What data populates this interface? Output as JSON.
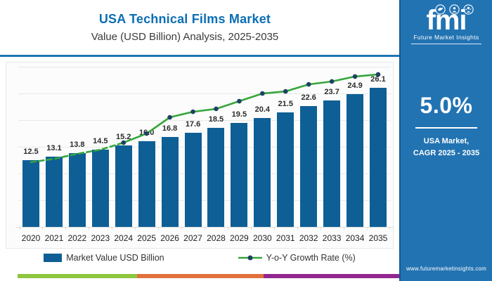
{
  "header": {
    "title": "USA Technical Films Market",
    "subtitle": "Value (USD Billion) Analysis, 2025-2035"
  },
  "logo": {
    "text": "fmi",
    "tagline": "Future Market Insights",
    "icons": [
      "dove",
      "person-globe",
      "person-waving"
    ]
  },
  "side_panel": {
    "bg_color": "#2273b2",
    "cagr_value": "5.0%",
    "cagr_label_line1": "USA Market,",
    "cagr_label_line2": "CAGR 2025 - 2035",
    "website": "www.futuremarketinsights.com"
  },
  "chart_data": {
    "type": "bar+line",
    "title": "USA Technical Films Market",
    "subtitle": "Value (USD Billion) Analysis, 2025-2035",
    "categories": [
      "2020",
      "2021",
      "2022",
      "2023",
      "2024",
      "2025",
      "2026",
      "2027",
      "2028",
      "2029",
      "2030",
      "2031",
      "2032",
      "2033",
      "2034",
      "2035"
    ],
    "series": [
      {
        "name": "Market Value USD Billion",
        "type": "bar",
        "color": "#0e5f96",
        "values": [
          12.5,
          13.1,
          13.8,
          14.5,
          15.2,
          16.0,
          16.8,
          17.6,
          18.5,
          19.5,
          20.4,
          21.5,
          22.6,
          23.7,
          24.9,
          26.1
        ]
      },
      {
        "name": "Y-o-Y Growth Rate (%)",
        "type": "line",
        "color": "#35a63b",
        "marker_color": "#1e4164",
        "axis": "secondary-hidden",
        "style_note": "dashed 2020-2024, solid with markers 2024-2035",
        "y_norm": [
          0.404,
          0.425,
          0.456,
          0.482,
          0.526,
          0.583,
          0.684,
          0.719,
          0.737,
          0.785,
          0.833,
          0.846,
          0.89,
          0.908,
          0.939,
          0.952
        ]
      }
    ],
    "ylim": [
      0,
      30
    ],
    "grid_step": 5,
    "grid": true,
    "value_label_decimals": 1,
    "legend_position": "bottom"
  },
  "footer_strip": {
    "colors": [
      "#8dc63f",
      "#e2713d",
      "#93278f"
    ],
    "widths": [
      170,
      180,
      195
    ]
  }
}
